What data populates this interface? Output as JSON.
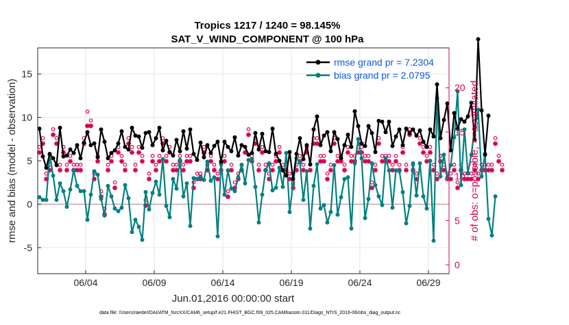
{
  "chart_data": {
    "type": "line",
    "title_line1": "Tropics 1217 / 1240 = 98.145%",
    "title_line2": "SAT_V_WIND_COMPONENT @ 100 hPa",
    "xlabel": "Jun.01,2016 00:00:00 start",
    "ylabel": "rmse and bias (model - observation)",
    "ylabel_right": "# of obs: o=possible; ×=assimilated",
    "footer": "data file: /Users/raeder/DAI/ATM_forcXX/CAM6_setup/f.e21.FHIST_BGC.f09_025.CAM6assim.011/Diags_NTrS_2016-06/obs_diag_output.nc",
    "xlim": [
      0.5,
      30.5
    ],
    "ylim": [
      -8,
      18
    ],
    "ylim_right": [
      -1,
      24.5
    ],
    "x_ticks": [
      {
        "value": 4,
        "label": "06/04"
      },
      {
        "value": 9,
        "label": "06/09"
      },
      {
        "value": 14,
        "label": "06/14"
      },
      {
        "value": 19,
        "label": "06/19"
      },
      {
        "value": 24,
        "label": "06/24"
      },
      {
        "value": 29,
        "label": "06/29"
      }
    ],
    "y_ticks": [
      {
        "value": -5,
        "label": "-5"
      },
      {
        "value": 0,
        "label": "0"
      },
      {
        "value": 5,
        "label": "5"
      },
      {
        "value": 10,
        "label": "10"
      },
      {
        "value": 15,
        "label": "15"
      }
    ],
    "y_ticks_right": [
      {
        "value": 0,
        "label": "0"
      },
      {
        "value": 5,
        "label": "5"
      },
      {
        "value": 10,
        "label": "10"
      },
      {
        "value": 15,
        "label": "15"
      },
      {
        "value": 20,
        "label": "20"
      }
    ],
    "x_start": 0.625,
    "x_step": 0.25,
    "series": [
      {
        "name": "rmse grand pr = 7.2304",
        "color": "#000000",
        "values": [
          8.7,
          5.5,
          4.2,
          5.8,
          5.3,
          4.5,
          8.8,
          5.5,
          5.6,
          6.3,
          5.9,
          6.8,
          5.3,
          7.1,
          8.3,
          6.8,
          7.0,
          5.4,
          8.6,
          7.2,
          5.3,
          5.9,
          6.2,
          7.0,
          8.4,
          6.6,
          6.3,
          8.8,
          7.9,
          7.8,
          6.5,
          8.2,
          8.3,
          6.8,
          7.6,
          8.8,
          6.2,
          7.3,
          6.0,
          5.6,
          7.4,
          6.1,
          8.4,
          6.4,
          8.6,
          5.8,
          5.1,
          7.1,
          5.4,
          6.8,
          5.9,
          6.7,
          7.2,
          4.9,
          7.2,
          6.6,
          6.1,
          7.7,
          5.6,
          6.8,
          6.6,
          5.7,
          5.9,
          8.2,
          6.3,
          8.1,
          6.1,
          6.0,
          8.7,
          5.8,
          5.0,
          3.9,
          3.3,
          6.0,
          2.9,
          5.8,
          7.6,
          5.2,
          6.8,
          4.6,
          8.6,
          10.1,
          6.8,
          7.9,
          8.3,
          6.1,
          8.3,
          7.5,
          5.3,
          6.8,
          8.0,
          6.6,
          10.7,
          9.0,
          7.0,
          6.7,
          9.0,
          8.2,
          6.0,
          9.6,
          9.5,
          8.3,
          9.5,
          6.7,
          7.8,
          8.6,
          6.8,
          8.7,
          8.2,
          8.6,
          7.9,
          8.5,
          7.2,
          6.6,
          8.6,
          7.8,
          13.8,
          7.6,
          9.7,
          11.6,
          6.2,
          10.5,
          8.7,
          9.8,
          9.5,
          10.1,
          11.7,
          7.4,
          19.0,
          10.8,
          5.7,
          10.2
        ]
      },
      {
        "name": "bias grand pr = 2.0795",
        "color": "#008080",
        "values": [
          0.8,
          0.5,
          0.5,
          5.7,
          3.3,
          0.5,
          2.4,
          1.5,
          -0.3,
          1.7,
          3.9,
          2.1,
          1.5,
          1.5,
          -1.8,
          1.1,
          3.8,
          3.4,
          0.6,
          -1.3,
          2.1,
          0.9,
          -0.5,
          -0.8,
          -0.4,
          2.2,
          0.7,
          -3.2,
          -1.8,
          -2.6,
          -4.1,
          1.4,
          -0.6,
          1.3,
          2.6,
          1.1,
          5.2,
          -0.2,
          -1.5,
          2.9,
          1.8,
          5.1,
          0.9,
          2.4,
          -2.5,
          3.0,
          2.9,
          3.2,
          2.8,
          4.9,
          2.7,
          3.1,
          -3.7,
          4.7,
          1.1,
          3.9,
          1.8,
          1.5,
          3.1,
          4.5,
          2.4,
          5.1,
          5.2,
          2.0,
          -2.1,
          1.1,
          3.9,
          4.7,
          1.6,
          1.9,
          4.2,
          2.0,
          5.9,
          -0.9,
          2.3,
          5.3,
          4.8,
          0.5,
          3.8,
          -2.8,
          2.1,
          4.6,
          -0.5,
          -0.1,
          -2.1,
          -0.9,
          4.5,
          -1.2,
          0.8,
          2.9,
          3.1,
          -2.8,
          4.7,
          7.5,
          5.3,
          -1.6,
          0.6,
          4.7,
          2.2,
          0.9,
          -0.1,
          5.3,
          3.9,
          -0.4,
          3.9,
          3.8,
          1.4,
          -2.2,
          -0.2,
          4.7,
          1.0,
          4.7,
          0.9,
          -0.5,
          5.0,
          -4.2,
          12.2,
          3.2,
          5.7,
          3.0,
          4.5,
          7.7,
          13.0,
          2.2,
          8.6,
          3.6,
          5.7,
          8.8,
          10.9,
          3.2,
          5.8,
          -1.7,
          -3.6,
          0.9
        ]
      }
    ],
    "obs_possible": [
      13,
      14,
      10,
      11,
      15,
      14,
      11,
      13,
      11,
      12,
      11,
      11,
      11,
      14,
      17,
      16,
      10,
      12,
      8,
      6,
      11,
      12,
      9,
      13,
      12,
      11,
      14,
      13,
      11,
      13,
      12,
      7,
      10,
      12,
      11,
      12,
      14,
      12,
      13,
      11,
      11,
      12,
      11,
      12,
      12,
      9,
      10,
      10,
      13,
      11,
      12,
      11,
      10,
      11,
      12,
      8,
      11,
      9,
      10,
      11,
      13,
      15,
      12,
      14,
      11,
      13,
      11,
      10,
      11,
      12,
      13,
      11,
      11,
      10,
      9,
      11,
      12,
      11,
      13,
      11,
      14,
      14,
      12,
      12,
      10,
      11,
      14,
      12,
      12,
      11,
      13,
      12,
      12,
      13,
      13,
      12,
      12,
      9,
      11,
      14,
      12,
      12,
      12,
      11,
      12,
      11,
      13,
      11,
      15,
      11,
      10,
      14,
      13,
      12,
      13,
      11,
      10,
      12,
      11,
      10,
      10,
      11,
      9,
      11,
      10,
      10,
      10,
      11,
      10,
      11,
      11,
      11,
      11,
      14,
      12,
      11
    ],
    "obs_assimilated": [
      13,
      14,
      10,
      11,
      15,
      14,
      11,
      13,
      11,
      12,
      11,
      11,
      11,
      14,
      16,
      16,
      10,
      12,
      8,
      6,
      11,
      12,
      9,
      13,
      12,
      11,
      14,
      13,
      11,
      13,
      12,
      7,
      10,
      12,
      11,
      12,
      14,
      12,
      13,
      11,
      11,
      12,
      11,
      12,
      12,
      9,
      10,
      10,
      13,
      11,
      12,
      11,
      10,
      11,
      12,
      8,
      11,
      9,
      10,
      11,
      13,
      15,
      12,
      14,
      11,
      13,
      11,
      10,
      11,
      12,
      13,
      11,
      11,
      10,
      9,
      11,
      12,
      11,
      13,
      11,
      14,
      14,
      12,
      12,
      10,
      11,
      14,
      12,
      12,
      11,
      13,
      12,
      12,
      13,
      13,
      12,
      12,
      9,
      11,
      14,
      12,
      12,
      12,
      11,
      12,
      11,
      13,
      11,
      15,
      11,
      10,
      14,
      13,
      12,
      13,
      11,
      10,
      12,
      11,
      10,
      10,
      11,
      9,
      11,
      10,
      10,
      10,
      11,
      10,
      11,
      11,
      11,
      11,
      14,
      12,
      11
    ]
  }
}
